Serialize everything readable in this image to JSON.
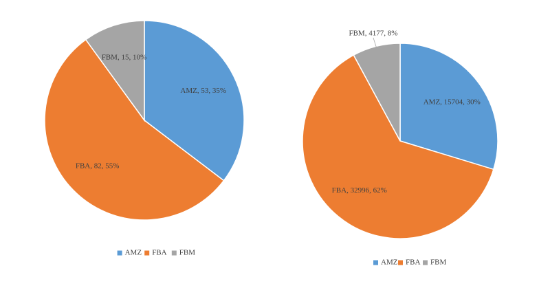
{
  "chart_data": [
    {
      "type": "pie",
      "categories": [
        "AMZ",
        "FBA",
        "FBM"
      ],
      "values": [
        53,
        82,
        15
      ],
      "value_labels": [
        "AMZ, 53, 35%",
        "FBA, 82, 55%",
        "FBM, 15, 10%"
      ],
      "colors": [
        "#5b9bd5",
        "#ed7d31",
        "#a5a5a5"
      ],
      "legend": "bottom"
    },
    {
      "type": "pie",
      "categories": [
        "AMZ",
        "FBA",
        "FBM"
      ],
      "values": [
        15704,
        32996,
        4177
      ],
      "value_labels": [
        "AMZ, 15704, 30%",
        "FBA, 32996, 62%",
        "FBM, 4177, 8%"
      ],
      "colors": [
        "#5b9bd5",
        "#ed7d31",
        "#a5a5a5"
      ],
      "legend": "bottom"
    }
  ]
}
